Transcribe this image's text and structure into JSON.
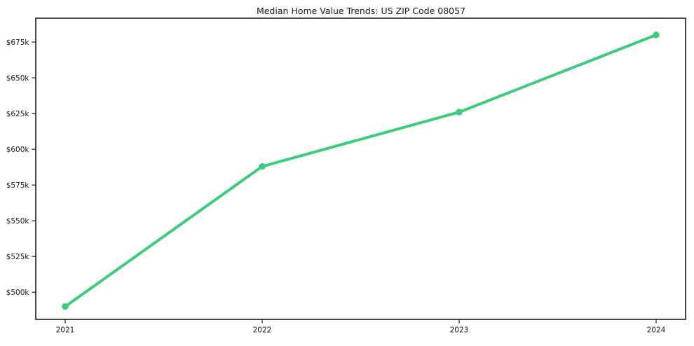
{
  "chart_data": {
    "type": "line",
    "title": "Median Home Value Trends: US ZIP Code 08057",
    "x": [
      "2021",
      "2022",
      "2023",
      "2024"
    ],
    "series": [
      {
        "name": "Median Home Value",
        "values": [
          490000,
          588000,
          626000,
          680000
        ]
      }
    ],
    "ytick_values": [
      500000,
      525000,
      550000,
      575000,
      600000,
      625000,
      650000,
      675000
    ],
    "ytick_labels": [
      "$500k",
      "$525k",
      "$550k",
      "$575k",
      "$600k",
      "$625k",
      "$650k",
      "$675k"
    ],
    "ylim": [
      481000,
      691700
    ],
    "xlabel": "",
    "ylabel": "",
    "grid": false,
    "legend_position": "none",
    "line_color": "#3ecb7d",
    "marker_color": "#3ecb7d",
    "axis_color": "#1a1a1a",
    "background_color": "#ffffff"
  }
}
